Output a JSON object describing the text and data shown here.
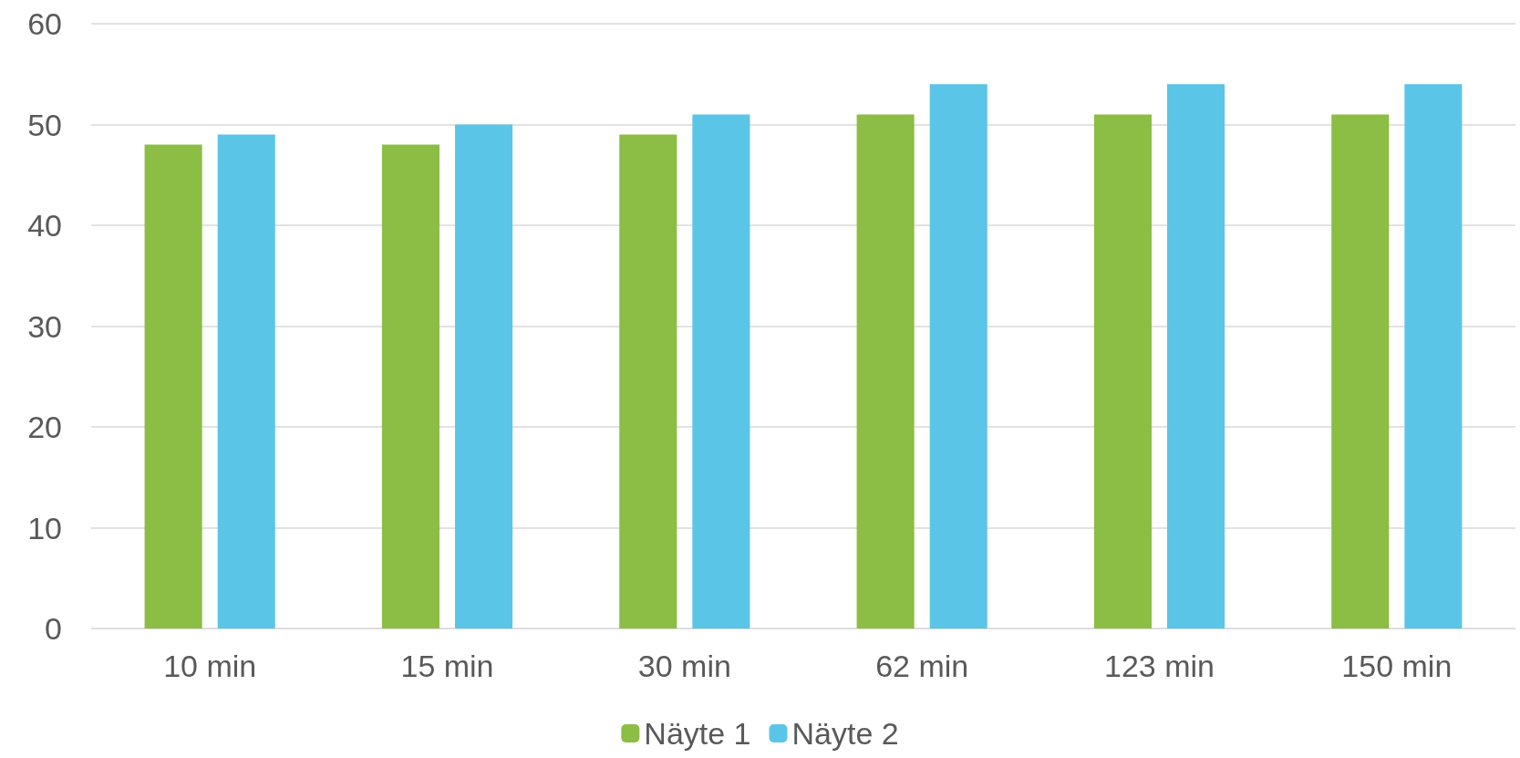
{
  "chart_data": {
    "type": "bar",
    "categories": [
      "10 min",
      "15 min",
      "30 min",
      "62 min",
      "123 min",
      "150 min"
    ],
    "series": [
      {
        "name": "Näyte 1",
        "color": "#8cbd44",
        "values": [
          48,
          48,
          49,
          51,
          51,
          51
        ]
      },
      {
        "name": "Näyte 2",
        "color": "#5bc5e8",
        "values": [
          49,
          50,
          51,
          54,
          54,
          54
        ]
      }
    ],
    "ylim": [
      0,
      60
    ],
    "yticks": [
      0,
      10,
      20,
      30,
      40,
      50,
      60
    ],
    "grid": "y",
    "legend": "bottom"
  }
}
